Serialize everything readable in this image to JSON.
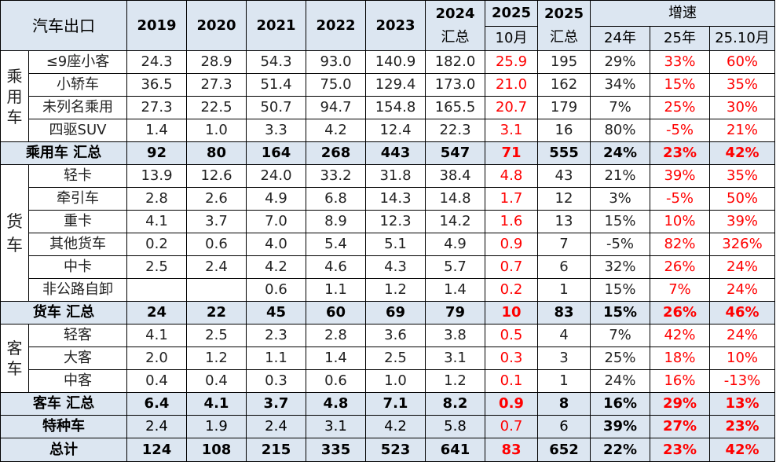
{
  "header": {
    "title": "汽车出口",
    "years": [
      "2019",
      "2020",
      "2021",
      "2022",
      "2023"
    ],
    "col_2024_top": "2024",
    "col_2024_bottom": "汇总",
    "col_2025m_top": "2025",
    "col_2025m_bottom": "10月",
    "col_2025s_top": "2025",
    "col_2025s_bottom": "汇总",
    "growth": "增速",
    "growth_cols": [
      "24年",
      "25年",
      "25.10月"
    ]
  },
  "passenger": {
    "category": "乘用车",
    "rows": [
      {
        "name": "≤9座小客",
        "v": [
          "24.3",
          "28.9",
          "54.3",
          "93.0",
          "140.9",
          "182.0",
          "25.9",
          "195",
          "29%",
          "33%",
          "60%"
        ]
      },
      {
        "name": "小轿车",
        "v": [
          "36.5",
          "27.3",
          "51.4",
          "75.0",
          "129.4",
          "173.0",
          "21.0",
          "162",
          "34%",
          "15%",
          "35%"
        ]
      },
      {
        "name": "未列名乘用",
        "v": [
          "27.3",
          "22.5",
          "50.7",
          "94.7",
          "154.8",
          "165.5",
          "20.7",
          "179",
          "7%",
          "25%",
          "30%"
        ]
      },
      {
        "name": "四驱SUV",
        "v": [
          "1.4",
          "1.0",
          "3.3",
          "4.2",
          "12.4",
          "22.3",
          "3.1",
          "16",
          "80%",
          "-5%",
          "21%"
        ]
      }
    ],
    "summary": {
      "name": "乘用车 汇总",
      "v": [
        "92",
        "80",
        "164",
        "268",
        "443",
        "547",
        "71",
        "555",
        "24%",
        "23%",
        "42%"
      ]
    }
  },
  "truck": {
    "category": "货车",
    "rows": [
      {
        "name": "轻卡",
        "v": [
          "13.9",
          "12.6",
          "24.0",
          "33.2",
          "31.8",
          "38.4",
          "4.8",
          "43",
          "21%",
          "39%",
          "35%"
        ]
      },
      {
        "name": "牵引车",
        "v": [
          "2.8",
          "2.6",
          "4.9",
          "6.8",
          "14.3",
          "14.8",
          "1.7",
          "12",
          "3%",
          "-5%",
          "50%"
        ]
      },
      {
        "name": "重卡",
        "v": [
          "4.1",
          "3.7",
          "7.0",
          "8.9",
          "12.3",
          "14.2",
          "1.6",
          "13",
          "15%",
          "10%",
          "39%"
        ]
      },
      {
        "name": "其他货车",
        "v": [
          "0.2",
          "0.6",
          "4.0",
          "5.4",
          "5.1",
          "4.9",
          "0.9",
          "7",
          "-5%",
          "82%",
          "326%"
        ]
      },
      {
        "name": "中卡",
        "v": [
          "2.5",
          "2.4",
          "4.2",
          "4.6",
          "4.3",
          "5.7",
          "0.7",
          "6",
          "32%",
          "26%",
          "24%"
        ]
      },
      {
        "name": "非公路自卸",
        "v": [
          "",
          "",
          "0.6",
          "1.1",
          "1.2",
          "1.4",
          "0.2",
          "1",
          "15%",
          "7%",
          "24%"
        ]
      }
    ],
    "summary": {
      "name": "货车 汇总",
      "v": [
        "24",
        "22",
        "45",
        "60",
        "69",
        "79",
        "10",
        "83",
        "15%",
        "26%",
        "46%"
      ]
    }
  },
  "bus": {
    "category": "客车",
    "rows": [
      {
        "name": "轻客",
        "v": [
          "4.1",
          "2.5",
          "2.3",
          "2.8",
          "3.6",
          "3.8",
          "0.5",
          "4",
          "7%",
          "42%",
          "24%"
        ]
      },
      {
        "name": "大客",
        "v": [
          "2.0",
          "1.2",
          "1.1",
          "1.4",
          "2.5",
          "3.1",
          "0.3",
          "3",
          "25%",
          "18%",
          "10%"
        ]
      },
      {
        "name": "中客",
        "v": [
          "0.4",
          "0.4",
          "0.3",
          "0.6",
          "1.0",
          "1.2",
          "0.1",
          "1",
          "24%",
          "16%",
          "-13%"
        ]
      }
    ],
    "summary": {
      "name": "客车 汇总",
      "v": [
        "6.4",
        "4.1",
        "3.7",
        "4.8",
        "7.1",
        "8.2",
        "0.9",
        "8",
        "16%",
        "29%",
        "13%"
      ]
    }
  },
  "special": {
    "name": "特种车",
    "v": [
      "2.4",
      "1.9",
      "2.4",
      "3.1",
      "4.2",
      "5.8",
      "0.7",
      "6",
      "39%",
      "27%",
      "23%"
    ]
  },
  "total": {
    "name": "总计",
    "v": [
      "124",
      "108",
      "215",
      "335",
      "523",
      "641",
      "83",
      "652",
      "22%",
      "23%",
      "42%"
    ]
  },
  "colors": {
    "header_bg": "#dce6f1",
    "highlight": "#ff0000",
    "border": "#000000"
  }
}
